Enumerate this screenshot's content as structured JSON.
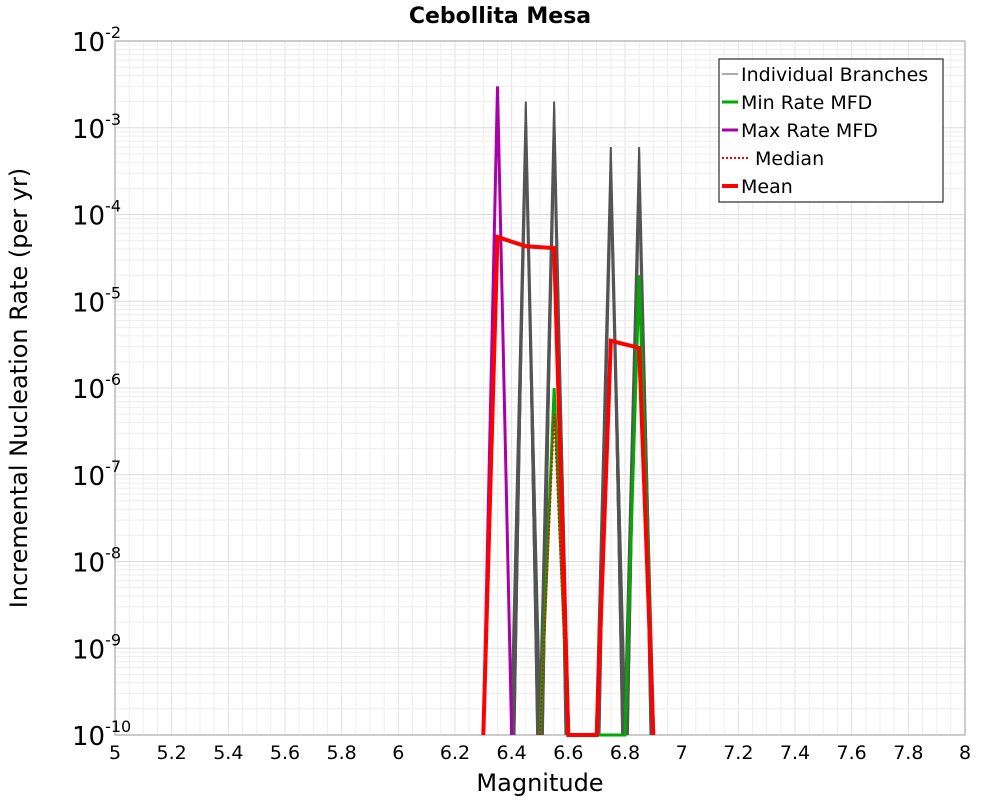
{
  "chart_data": {
    "type": "line",
    "title": "Cebollita Mesa",
    "xlabel": "Magnitude",
    "ylabel": "Incremental Nucleation Rate (per yr)",
    "xlim": [
      5,
      8
    ],
    "ylim": [
      1e-10,
      0.01
    ],
    "yscale": "log",
    "grid": true,
    "legend_position": "top-right",
    "x_ticks": [
      "5",
      "5.2",
      "5.4",
      "5.6",
      "5.8",
      "6",
      "6.2",
      "6.4",
      "6.6",
      "6.8",
      "7",
      "7.2",
      "7.4",
      "7.6",
      "7.8",
      "8"
    ],
    "y_ticks": [
      {
        "base": "10",
        "exp": "-10",
        "value": 1e-10
      },
      {
        "base": "10",
        "exp": "-9",
        "value": 1e-09
      },
      {
        "base": "10",
        "exp": "-8",
        "value": 1e-08
      },
      {
        "base": "10",
        "exp": "-7",
        "value": 1e-07
      },
      {
        "base": "10",
        "exp": "-6",
        "value": 1e-06
      },
      {
        "base": "10",
        "exp": "-5",
        "value": 1e-05
      },
      {
        "base": "10",
        "exp": "-4",
        "value": 0.0001
      },
      {
        "base": "10",
        "exp": "-3",
        "value": 0.001
      },
      {
        "base": "10",
        "exp": "-2",
        "value": 0.01
      }
    ],
    "series": [
      {
        "name": "Individual Branches",
        "color": "#555555",
        "style": "thin",
        "peaks": [
          {
            "x": 6.45,
            "y": 0.002
          },
          {
            "x": 6.55,
            "y": 0.002
          },
          {
            "x": 6.75,
            "y": 0.0006
          },
          {
            "x": 6.85,
            "y": 0.0006
          }
        ]
      },
      {
        "name": "Min Rate MFD",
        "color": "#00aa00",
        "style": "solid",
        "x": [
          6.5,
          6.55,
          6.6,
          6.8,
          6.85,
          6.9
        ],
        "y": [
          1e-10,
          1e-06,
          1e-10,
          1e-10,
          2e-05,
          1e-10
        ]
      },
      {
        "name": "Max Rate MFD",
        "color": "#aa00aa",
        "style": "solid",
        "x": [
          6.3,
          6.35,
          6.4
        ],
        "y": [
          1e-10,
          0.003,
          1e-10
        ]
      },
      {
        "name": "Median",
        "color": "#ff0000",
        "style": "dotted",
        "x": [
          6.5,
          6.55,
          6.6
        ],
        "y": [
          1e-10,
          5e-07,
          1e-10
        ]
      },
      {
        "name": "Mean",
        "color": "#ff0000",
        "style": "thick",
        "x": [
          6.3,
          6.35,
          6.45,
          6.55,
          6.6,
          6.7,
          6.75,
          6.85,
          6.9
        ],
        "y": [
          1e-10,
          5.5e-05,
          4.3e-05,
          4.1e-05,
          1e-10,
          1e-10,
          3.5e-06,
          2.9e-06,
          1e-10
        ]
      }
    ]
  }
}
